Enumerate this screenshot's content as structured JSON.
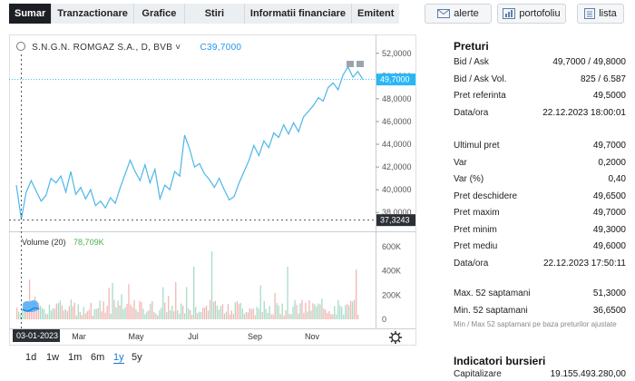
{
  "tabs": [
    "Sumar",
    "Tranzactionare",
    "Grafice",
    "Stiri",
    "Informatii financiare",
    "Emitent"
  ],
  "actions": {
    "alerte": "alerte",
    "portofoliu": "portofoliu",
    "lista": "lista"
  },
  "chart_header": {
    "symbol": "S.N.G.N. ROMGAZ S.A., D, BVB",
    "chevron": "˅",
    "price_prefix": "C",
    "price": "39,7000"
  },
  "volume_label": {
    "label": "Volume (20)",
    "value": "78,709K"
  },
  "price_axis": [
    "52,0000",
    "50,0000",
    "48,0000",
    "46,0000",
    "44,0000",
    "42,0000",
    "40,0000",
    "38,0000"
  ],
  "last_price_tag": "49,7000",
  "crosshair_price_tag": "37,3243",
  "volume_axis": [
    "600K",
    "400K",
    "200K",
    "0"
  ],
  "date_tag": "03-01-2023",
  "x_axis": [
    "Mar",
    "May",
    "Jul",
    "Sep",
    "Nov"
  ],
  "ranges": [
    "1d",
    "1w",
    "1m",
    "6m",
    "1y",
    "5y"
  ],
  "active_range": "1y",
  "colors": {
    "line": "#4db6e8",
    "vol_up": "#a6dcc6",
    "vol_down": "#f2b7b3",
    "last_tag": "#29b6f6",
    "accent": "#1976d2"
  },
  "icons": {
    "settings": "gear-icon",
    "logo": "cloud-logo-icon"
  },
  "chart_data": {
    "type": "line",
    "x": [
      "03-01-2023",
      "Mar",
      "May",
      "Jul",
      "Sep",
      "Nov",
      "22-12-2023"
    ],
    "y_range": [
      36.5,
      53.5
    ],
    "points": [
      [
        "03-01-2023",
        40.4
      ],
      [
        "",
        37.4
      ],
      [
        "",
        39.8
      ],
      [
        "",
        40.8
      ],
      [
        "",
        39.9
      ],
      [
        "",
        39.0
      ],
      [
        "",
        39.5
      ],
      [
        "",
        41.0
      ],
      [
        "",
        40.6
      ],
      [
        "",
        41.2
      ],
      [
        "",
        39.8
      ],
      [
        "",
        41.6
      ],
      [
        "",
        39.6
      ],
      [
        "",
        40.2
      ],
      [
        "",
        39.2
      ],
      [
        "",
        40.0
      ],
      [
        "",
        38.6
      ],
      [
        "",
        39.0
      ],
      [
        "",
        38.4
      ],
      [
        "",
        39.3
      ],
      [
        "",
        38.8
      ],
      [
        "",
        40.2
      ],
      [
        "",
        41.4
      ],
      [
        "",
        42.6
      ],
      [
        "",
        41.6
      ],
      [
        "",
        40.8
      ],
      [
        "",
        42.2
      ],
      [
        "",
        40.6
      ],
      [
        "",
        41.8
      ],
      [
        "",
        39.2
      ],
      [
        "",
        40.4
      ],
      [
        "",
        40.0
      ],
      [
        "",
        41.6
      ],
      [
        "",
        41.2
      ],
      [
        "",
        44.8
      ],
      [
        "",
        43.6
      ],
      [
        "",
        42.0
      ],
      [
        "",
        42.3
      ],
      [
        "",
        41.4
      ],
      [
        "",
        40.9
      ],
      [
        "",
        40.2
      ],
      [
        "",
        41.0
      ],
      [
        "",
        40.0
      ],
      [
        "",
        39.1
      ],
      [
        "",
        39.4
      ],
      [
        "",
        40.6
      ],
      [
        "",
        41.6
      ],
      [
        "",
        42.6
      ],
      [
        "",
        43.9
      ],
      [
        "",
        43.0
      ],
      [
        "",
        44.3
      ],
      [
        "",
        43.7
      ],
      [
        "",
        45.0
      ],
      [
        "",
        44.6
      ],
      [
        "",
        45.7
      ],
      [
        "",
        44.9
      ],
      [
        "",
        45.9
      ],
      [
        "",
        45.1
      ],
      [
        "",
        46.4
      ],
      [
        "",
        46.9
      ],
      [
        "",
        47.4
      ],
      [
        "",
        48.1
      ],
      [
        "",
        47.8
      ],
      [
        "",
        49.0
      ],
      [
        "",
        49.4
      ],
      [
        "",
        48.8
      ],
      [
        "",
        50.1
      ],
      [
        "",
        50.8
      ],
      [
        "",
        49.9
      ],
      [
        "",
        50.4
      ],
      [
        "22-12-2023",
        49.7
      ]
    ]
  },
  "side": {
    "preturi_title": "Preturi",
    "rows1": [
      {
        "k": "Bid / Ask",
        "v": "49,7000 / 49,8000"
      },
      {
        "k": "Bid / Ask Vol.",
        "v": "825 / 6.587"
      },
      {
        "k": "Pret referinta",
        "v": "49,5000"
      },
      {
        "k": "Data/ora",
        "v": "22.12.2023 18:00:01"
      }
    ],
    "rows2": [
      {
        "k": "Ultimul pret",
        "v": "49,7000"
      },
      {
        "k": "Var",
        "v": "0,2000"
      },
      {
        "k": "Var (%)",
        "v": "0,40"
      },
      {
        "k": "Pret deschidere",
        "v": "49,6500"
      },
      {
        "k": "Pret maxim",
        "v": "49,7000"
      },
      {
        "k": "Pret minim",
        "v": "49,3000"
      },
      {
        "k": "Pret mediu",
        "v": "49,6000"
      },
      {
        "k": "Data/ora",
        "v": "22.12.2023 17:50:11"
      }
    ],
    "rows3": [
      {
        "k": "Max. 52 saptamani",
        "v": "51,3000"
      },
      {
        "k": "Min. 52 saptamani",
        "v": "36,6500"
      }
    ],
    "note": "Min / Max 52 saptamani pe baza preturilor ajustate",
    "indicatori_title": "Indicatori bursieri",
    "cap_label": "Capitalizare",
    "cap_value": "19.155.493.280,00"
  }
}
